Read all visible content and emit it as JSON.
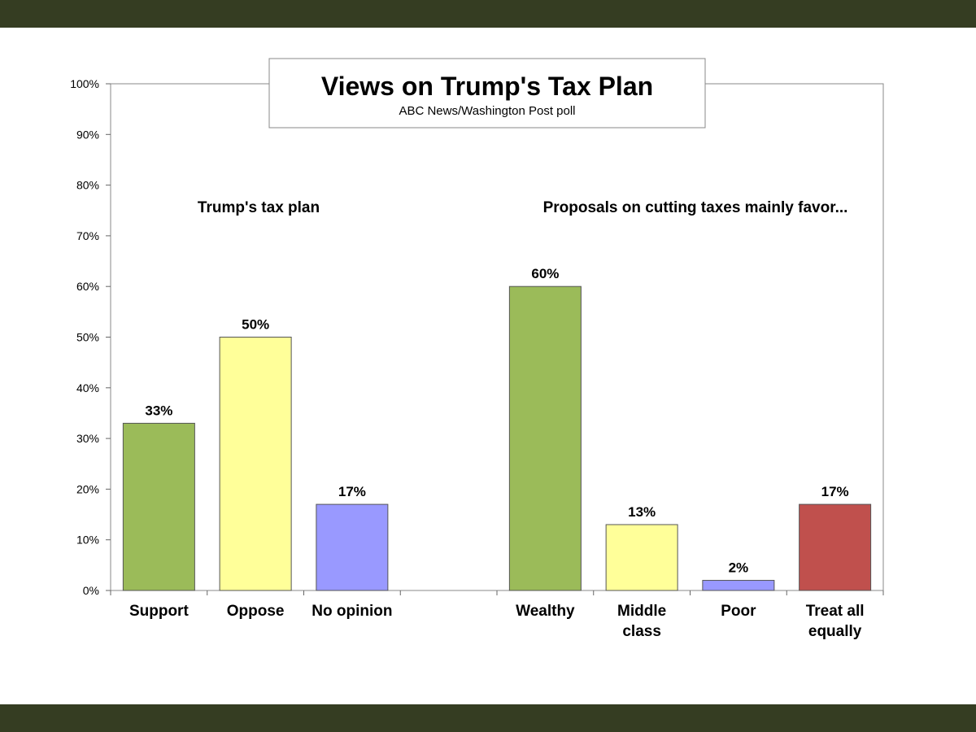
{
  "colors": {
    "band": "#353d22",
    "support": "#9bbb59",
    "oppose": "#ffff99",
    "no_opinion": "#9999ff",
    "treat_all": "#c0504d"
  },
  "chart_data": {
    "type": "bar",
    "title": "Views on Trump's Tax Plan",
    "subtitle": "ABC News/Washington Post poll",
    "ylim": [
      0,
      100
    ],
    "yticks": [
      0,
      10,
      20,
      30,
      40,
      50,
      60,
      70,
      80,
      90,
      100
    ],
    "ytick_labels": [
      "0%",
      "10%",
      "20%",
      "30%",
      "40%",
      "50%",
      "60%",
      "70%",
      "80%",
      "90%",
      "100%"
    ],
    "groups": [
      {
        "label": "Trump's tax plan",
        "categories": [
          "Support",
          "Oppose",
          "No opinion"
        ],
        "values": [
          33,
          50,
          17
        ],
        "value_labels": [
          "33%",
          "50%",
          "17%"
        ],
        "colors": [
          "#9bbb59",
          "#ffff99",
          "#9999ff"
        ]
      },
      {
        "label": "Proposals on cutting taxes mainly favor...",
        "categories": [
          "Wealthy",
          "Middle class",
          "Poor",
          "Treat all equally"
        ],
        "category_lines": [
          [
            "Wealthy"
          ],
          [
            "Middle",
            "class"
          ],
          [
            "Poor"
          ],
          [
            "Treat all",
            "equally"
          ]
        ],
        "values": [
          60,
          13,
          2,
          17
        ],
        "value_labels": [
          "60%",
          "13%",
          "2%",
          "17%"
        ],
        "colors": [
          "#9bbb59",
          "#ffff99",
          "#9999ff",
          "#c0504d"
        ]
      }
    ]
  }
}
